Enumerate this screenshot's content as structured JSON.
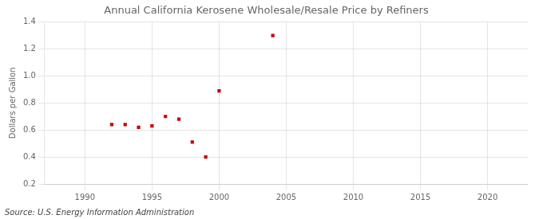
{
  "chart_data": {
    "type": "scatter",
    "title": "Annual California Kerosene Wholesale/Resale Price by Refiners",
    "ylabel": "Dollars per Gallon",
    "annotations": [
      "Source: U.S. Energy Information Administration"
    ],
    "x": [
      1992,
      1993,
      1994,
      1995,
      1996,
      1997,
      1998,
      1999,
      2000,
      2004
    ],
    "values": [
      0.64,
      0.64,
      0.62,
      0.63,
      0.7,
      0.68,
      0.51,
      0.4,
      0.89,
      1.3
    ],
    "color": "#cc0000",
    "marker": "square",
    "xlim": [
      1987,
      2023
    ],
    "xticks": [
      1990,
      1995,
      2000,
      2005,
      2010,
      2015,
      2020
    ],
    "ylim": [
      0.2,
      1.4
    ],
    "yticks": [
      0.2,
      0.4,
      0.6,
      0.8,
      {
        "value": 1.0,
        "label": "1.0"
      },
      1.2,
      1.4
    ],
    "grid": true
  }
}
